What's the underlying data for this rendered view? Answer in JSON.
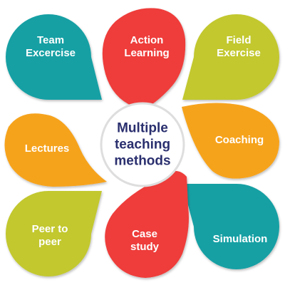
{
  "center": {
    "label": "Multiple\nteaching\nmethods"
  },
  "petals": [
    {
      "id": "team-excercise",
      "label": "Team\nExcercise",
      "color": "#15a0a4"
    },
    {
      "id": "action-learning",
      "label": "Action\nLearning",
      "color": "#ee3e3b"
    },
    {
      "id": "field-exercise",
      "label": "Field\nExercise",
      "color": "#c2c82f"
    },
    {
      "id": "coaching",
      "label": "Coaching",
      "color": "#f6a31c"
    },
    {
      "id": "simulation",
      "label": "Simulation",
      "color": "#15a0a4"
    },
    {
      "id": "case-study",
      "label": "Case\nstudy",
      "color": "#ee3e3b"
    },
    {
      "id": "peer-to-peer",
      "label": "Peer to\npeer",
      "color": "#c2c82f"
    },
    {
      "id": "lectures",
      "label": "Lectures",
      "color": "#f6a31c"
    }
  ]
}
